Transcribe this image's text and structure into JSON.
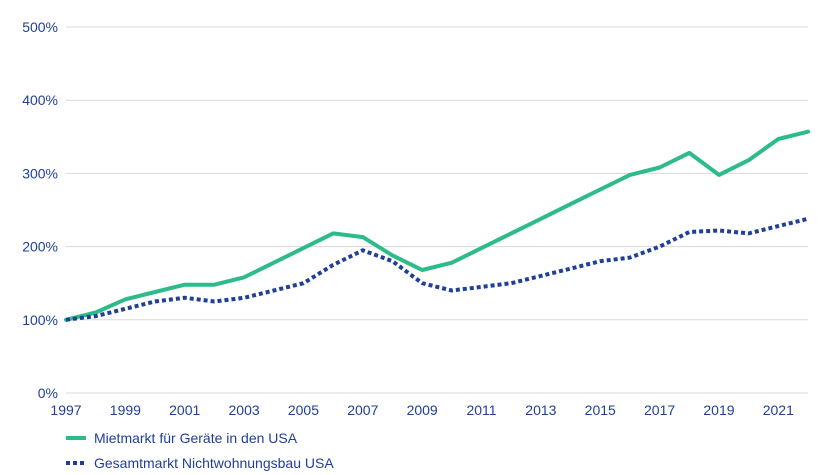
{
  "chart_data": {
    "type": "line",
    "title": "",
    "xlabel": "",
    "ylabel": "",
    "ylim": [
      0,
      500
    ],
    "y_ticks": [
      0,
      100,
      200,
      300,
      400,
      500
    ],
    "y_tick_labels": [
      "0%",
      "100%",
      "200%",
      "300%",
      "400%",
      "500%"
    ],
    "x_range": [
      1997,
      2022
    ],
    "x_ticks": [
      1997,
      1999,
      2001,
      2003,
      2005,
      2007,
      2009,
      2011,
      2013,
      2015,
      2017,
      2019,
      2021
    ],
    "x_tick_labels": [
      "1997",
      "1999",
      "2001",
      "2003",
      "2005",
      "2007",
      "2009",
      "2011",
      "2013",
      "2015",
      "2017",
      "2019",
      "2021"
    ],
    "grid": true,
    "legend_position": "bottom-left",
    "x": [
      1997,
      1998,
      1999,
      2000,
      2001,
      2002,
      2003,
      2004,
      2005,
      2006,
      2007,
      2008,
      2009,
      2010,
      2011,
      2012,
      2013,
      2014,
      2015,
      2016,
      2017,
      2018,
      2019,
      2020,
      2021,
      2022
    ],
    "series": [
      {
        "name": "Mietmarkt für Geräte in den USA",
        "color": "#2dbb8a",
        "style": "solid",
        "values": [
          100,
          110,
          128,
          138,
          148,
          148,
          158,
          178,
          198,
          218,
          213,
          188,
          168,
          178,
          198,
          218,
          238,
          258,
          278,
          298,
          308,
          328,
          298,
          318,
          347,
          357
        ]
      },
      {
        "name": "Gesamtmarkt Nichtwohnungsbau USA",
        "color": "#1f3f9a",
        "style": "dotted",
        "values": [
          100,
          105,
          115,
          125,
          130,
          125,
          130,
          140,
          150,
          175,
          195,
          180,
          150,
          140,
          145,
          150,
          160,
          170,
          180,
          185,
          200,
          220,
          222,
          218,
          228,
          238
        ]
      }
    ]
  }
}
